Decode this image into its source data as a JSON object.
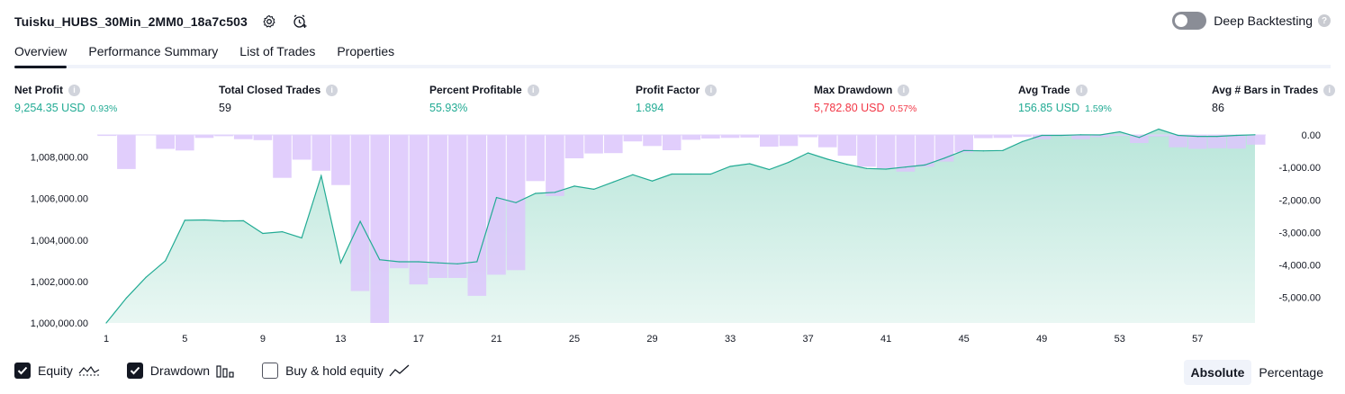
{
  "header": {
    "title": "Tuisku_HUBS_30Min_2MM0_18a7c503",
    "settings_icon": "settings-gear-icon",
    "alert_icon": "add-alert-clock-icon"
  },
  "deep_backtesting": {
    "label": "Deep Backtesting",
    "enabled": false,
    "help": "?"
  },
  "tabs": [
    {
      "label": "Overview",
      "active": true
    },
    {
      "label": "Performance Summary",
      "active": false
    },
    {
      "label": "List of Trades",
      "active": false
    },
    {
      "label": "Properties",
      "active": false
    }
  ],
  "metrics": [
    {
      "label": "Net Profit",
      "value": "9,254.35 USD",
      "pct": "0.93%",
      "color": "green"
    },
    {
      "label": "Total Closed Trades",
      "value": "59",
      "pct": "",
      "color": "dark"
    },
    {
      "label": "Percent Profitable",
      "value": "55.93%",
      "pct": "",
      "color": "green"
    },
    {
      "label": "Profit Factor",
      "value": "1.894",
      "pct": "",
      "color": "green"
    },
    {
      "label": "Max Drawdown",
      "value": "5,782.80 USD",
      "pct": "0.57%",
      "color": "red"
    },
    {
      "label": "Avg Trade",
      "value": "156.85 USD",
      "pct": "1.59%",
      "color": "green"
    },
    {
      "label": "Avg # Bars in Trades",
      "value": "86",
      "pct": "",
      "color": "dark"
    }
  ],
  "legend": {
    "equity": {
      "label": "Equity",
      "checked": true
    },
    "drawdown": {
      "label": "Drawdown",
      "checked": true
    },
    "buy_hold": {
      "label": "Buy & hold equity",
      "checked": false
    }
  },
  "modes": {
    "absolute": "Absolute",
    "percentage": "Percentage",
    "active": "absolute"
  },
  "colors": {
    "equity_line": "#22ab94",
    "equity_fill": "#d1efe8",
    "drawdown_bar": "#dcc6fb",
    "drawdown_overlap": "#b8b6ea",
    "positive": "#22ab94",
    "negative": "#f23645"
  },
  "chart_data": {
    "type": "area",
    "x_ticks": [
      "1",
      "5",
      "9",
      "13",
      "17",
      "21",
      "25",
      "29",
      "33",
      "37",
      "41",
      "45",
      "49",
      "53",
      "57"
    ],
    "left_axis": {
      "ticks": [
        "1,008,000.00",
        "1,006,000.00",
        "1,004,000.00",
        "1,002,000.00",
        "1,000,000.00"
      ],
      "ylim": [
        1000000,
        1009200
      ]
    },
    "right_axis": {
      "ticks": [
        "0.00",
        "-1,000.00",
        "-2,000.00",
        "-3,000.00",
        "-4,000.00",
        "-5,000.00"
      ],
      "ylim": [
        -5783,
        0
      ]
    },
    "series": [
      {
        "name": "Equity",
        "x": [
          1,
          2,
          3,
          4,
          5,
          6,
          7,
          8,
          9,
          10,
          11,
          12,
          13,
          14,
          15,
          16,
          17,
          18,
          19,
          20,
          21,
          22,
          23,
          24,
          25,
          26,
          27,
          28,
          29,
          30,
          31,
          32,
          33,
          34,
          35,
          36,
          37,
          38,
          39,
          40,
          41,
          42,
          43,
          44,
          45,
          46,
          47,
          48,
          49,
          50,
          51,
          52,
          53,
          54,
          55,
          56,
          57,
          58,
          59,
          60
        ],
        "values": [
          1000000,
          1001200,
          1002200,
          1003000,
          1004950,
          1004970,
          1004920,
          1004930,
          1004320,
          1004400,
          1004100,
          1007100,
          1002900,
          1004900,
          1003050,
          1002950,
          1002950,
          1002900,
          1002850,
          1002950,
          1006050,
          1005800,
          1006250,
          1006300,
          1006600,
          1006450,
          1006800,
          1007150,
          1006850,
          1007180,
          1007180,
          1007180,
          1007550,
          1007680,
          1007400,
          1007750,
          1008200,
          1007900,
          1007650,
          1007450,
          1007420,
          1007520,
          1007620,
          1007950,
          1008320,
          1008300,
          1008320,
          1008750,
          1009050,
          1009050,
          1009080,
          1009070,
          1009220,
          1008950,
          1009350,
          1009050,
          1009000,
          1009000,
          1009050,
          1009080
        ]
      },
      {
        "name": "Drawdown",
        "x": [
          1,
          2,
          3,
          4,
          5,
          6,
          7,
          8,
          9,
          10,
          11,
          12,
          13,
          14,
          15,
          16,
          17,
          18,
          19,
          20,
          21,
          22,
          23,
          24,
          25,
          26,
          27,
          28,
          29,
          30,
          31,
          32,
          33,
          34,
          35,
          36,
          37,
          38,
          39,
          40,
          41,
          42,
          43,
          44,
          45,
          46,
          47,
          48,
          49,
          50,
          51,
          52,
          53,
          54,
          55,
          56,
          57,
          58,
          59,
          60
        ],
        "values": [
          -30,
          -1050,
          0,
          -430,
          -480,
          -90,
          -40,
          -130,
          -160,
          -1320,
          -760,
          -1100,
          -1540,
          -4800,
          -5783,
          -4100,
          -4600,
          -4400,
          -4400,
          -4950,
          -4300,
          -4160,
          -1420,
          -1880,
          -720,
          -570,
          -560,
          -200,
          -340,
          -470,
          -150,
          -110,
          -90,
          -80,
          -360,
          -340,
          -70,
          -380,
          -640,
          -980,
          -1030,
          -1130,
          -980,
          -820,
          -540,
          -100,
          -90,
          -60,
          -130,
          -40,
          -130,
          -70,
          -30,
          -250,
          -50,
          -380,
          -430,
          -410,
          -420,
          -300
        ]
      }
    ]
  }
}
